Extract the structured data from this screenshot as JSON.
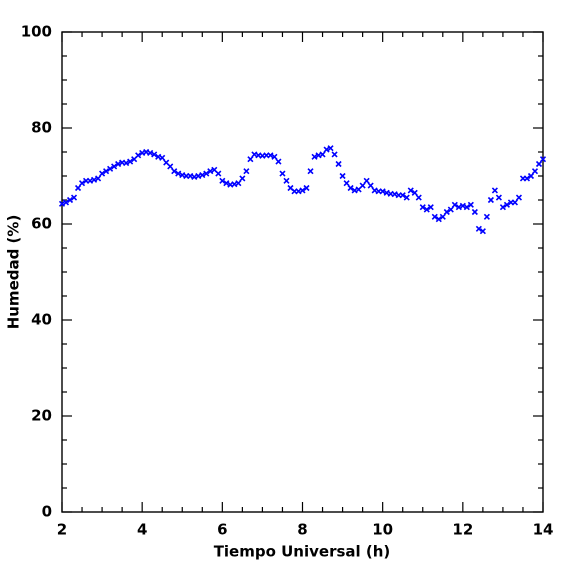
{
  "chart_data": {
    "type": "scatter",
    "xlabel": "Tiempo Universal (h)",
    "ylabel": "Humedad (%)",
    "color": "#0000ff",
    "x": [
      2.0,
      2.1,
      2.2,
      2.3,
      2.4,
      2.5,
      2.6,
      2.7,
      2.8,
      2.9,
      3.0,
      3.1,
      3.2,
      3.3,
      3.4,
      3.5,
      3.6,
      3.7,
      3.8,
      3.9,
      4.0,
      4.1,
      4.2,
      4.3,
      4.4,
      4.5,
      4.6,
      4.7,
      4.8,
      4.9,
      5.0,
      5.1,
      5.2,
      5.3,
      5.4,
      5.5,
      5.6,
      5.7,
      5.8,
      5.9,
      6.0,
      6.1,
      6.2,
      6.3,
      6.4,
      6.5,
      6.6,
      6.7,
      6.8,
      6.9,
      7.0,
      7.1,
      7.2,
      7.3,
      7.4,
      7.5,
      7.6,
      7.7,
      7.8,
      7.9,
      8.0,
      8.1,
      8.2,
      8.3,
      8.4,
      8.5,
      8.6,
      8.7,
      8.8,
      8.9,
      9.0,
      9.1,
      9.2,
      9.3,
      9.4,
      9.5,
      9.6,
      9.7,
      9.8,
      9.9,
      10.0,
      10.1,
      10.2,
      10.3,
      10.4,
      10.5,
      10.6,
      10.7,
      10.8,
      10.9,
      11.0,
      11.1,
      11.2,
      11.3,
      11.4,
      11.5,
      11.6,
      11.7,
      11.8,
      11.9,
      12.0,
      12.1,
      12.2,
      12.3,
      12.4,
      12.5,
      12.6,
      12.7,
      12.8,
      12.9,
      13.0,
      13.1,
      13.2,
      13.3,
      13.4,
      13.5,
      13.6,
      13.7,
      13.8,
      13.9,
      14.0
    ],
    "values": [
      64.2,
      64.5,
      65,
      65.5,
      67.5,
      68.5,
      69,
      69,
      69.2,
      69.5,
      70.5,
      71,
      71.5,
      72,
      72.5,
      72.8,
      72.7,
      73,
      73.5,
      74.3,
      74.8,
      75,
      74.8,
      74.5,
      74,
      73.8,
      72.8,
      72,
      71,
      70.5,
      70.2,
      70,
      70,
      69.8,
      70,
      70.2,
      70.5,
      71,
      71.3,
      70.5,
      69,
      68.5,
      68.2,
      68.3,
      68.5,
      69.5,
      71,
      73.5,
      74.5,
      74.3,
      74.2,
      74.3,
      74.3,
      74,
      73,
      70.5,
      69,
      67.5,
      66.8,
      66.8,
      67,
      67.5,
      71,
      74,
      74.3,
      74.5,
      75.5,
      75.8,
      74.5,
      72.5,
      70,
      68.5,
      67.5,
      67,
      67.2,
      68,
      69,
      68,
      67,
      66.8,
      66.8,
      66.5,
      66.3,
      66.2,
      66,
      66,
      65.5,
      67,
      66.5,
      65.5,
      63.5,
      63,
      63.5,
      61.5,
      61,
      61.5,
      62.5,
      63,
      64,
      63.5,
      63.8,
      63.5,
      64,
      62.5,
      59,
      58.5,
      61.5,
      65,
      67,
      65.5,
      63.5,
      64,
      64.5,
      64.5,
      65.5,
      69.5,
      69.5,
      70,
      71,
      72.5,
      73.5
    ],
    "xlim": [
      2,
      14
    ],
    "xticks": [
      2,
      4,
      6,
      8,
      10,
      12,
      14
    ],
    "ylim": [
      0,
      100
    ],
    "yticks": [
      0,
      20,
      40,
      60,
      80,
      100
    ]
  }
}
